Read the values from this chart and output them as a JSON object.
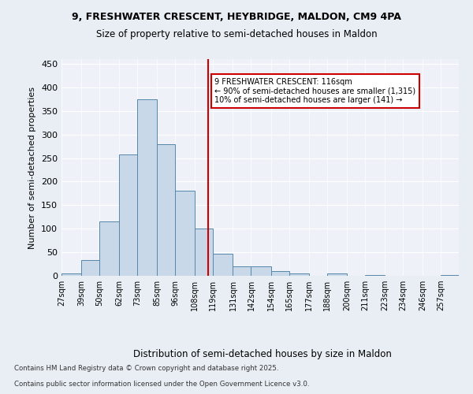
{
  "title_line1": "9, FRESHWATER CRESCENT, HEYBRIDGE, MALDON, CM9 4PA",
  "title_line2": "Size of property relative to semi-detached houses in Maldon",
  "xlabel": "Distribution of semi-detached houses by size in Maldon",
  "ylabel": "Number of semi-detached properties",
  "bin_labels": [
    "27sqm",
    "39sqm",
    "50sqm",
    "62sqm",
    "73sqm",
    "85sqm",
    "96sqm",
    "108sqm",
    "119sqm",
    "131sqm",
    "142sqm",
    "154sqm",
    "165sqm",
    "177sqm",
    "188sqm",
    "200sqm",
    "211sqm",
    "223sqm",
    "234sqm",
    "246sqm",
    "257sqm"
  ],
  "bin_edges": [
    27,
    39,
    50,
    62,
    73,
    85,
    96,
    108,
    119,
    131,
    142,
    154,
    165,
    177,
    188,
    200,
    211,
    223,
    234,
    246,
    257,
    268
  ],
  "bar_heights": [
    5,
    33,
    115,
    258,
    375,
    280,
    180,
    100,
    47,
    20,
    20,
    10,
    5,
    0,
    5,
    0,
    1,
    0,
    0,
    0,
    1
  ],
  "bar_color": "#c8d8e8",
  "bar_edgecolor": "#5588aa",
  "property_value": 116,
  "vline_color": "#cc0000",
  "annotation_text": "9 FRESHWATER CRESCENT: 116sqm\n← 90% of semi-detached houses are smaller (1,315)\n10% of semi-detached houses are larger (141) →",
  "annotation_box_edgecolor": "#cc0000",
  "annotation_box_facecolor": "#ffffff",
  "ylim": [
    0,
    460
  ],
  "yticks": [
    0,
    50,
    100,
    150,
    200,
    250,
    300,
    350,
    400,
    450
  ],
  "footer_line1": "Contains HM Land Registry data © Crown copyright and database right 2025.",
  "footer_line2": "Contains public sector information licensed under the Open Government Licence v3.0.",
  "background_color": "#e8eef4",
  "plot_background_color": "#eef2f8"
}
